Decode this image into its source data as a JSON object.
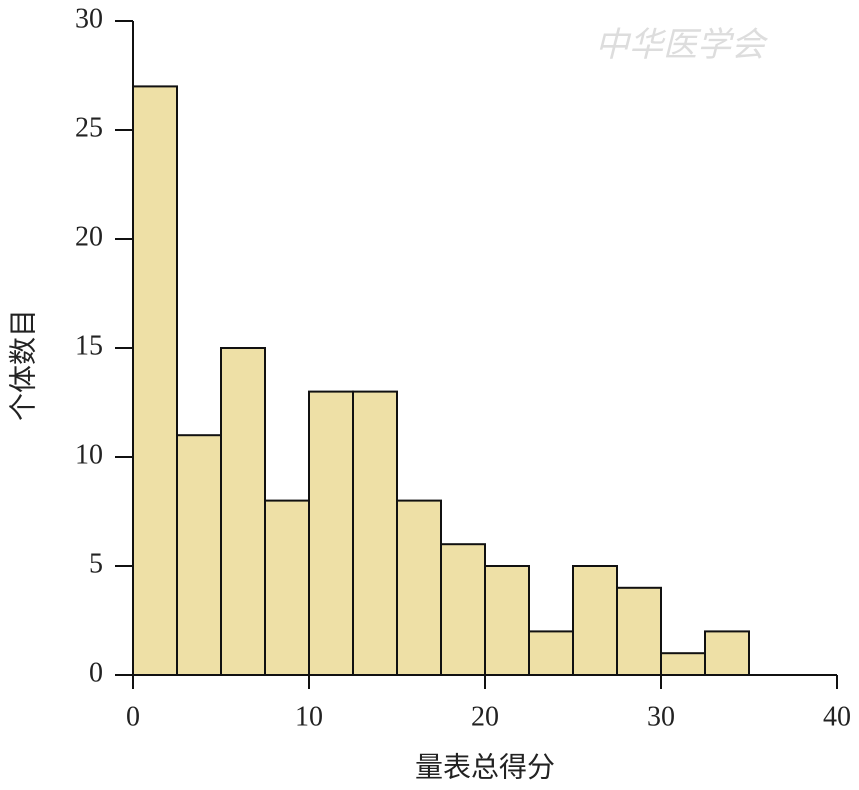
{
  "chart_data": {
    "type": "histogram",
    "xlabel": "量表总得分",
    "ylabel": "个体数目",
    "watermark": "中华医学会",
    "bins": [
      0,
      2.5,
      5,
      7.5,
      10,
      12.5,
      15,
      17.5,
      20,
      22.5,
      25,
      27.5,
      30,
      32.5,
      35
    ],
    "values": [
      27,
      11,
      15,
      8,
      13,
      13,
      8,
      6,
      5,
      2,
      5,
      4,
      1,
      2
    ],
    "color": "#eee0a6",
    "xlim": [
      0,
      40
    ],
    "xticks": [
      0,
      10,
      20,
      30,
      40
    ],
    "ylim": [
      0,
      30
    ],
    "yticks": [
      0,
      5,
      10,
      15,
      20,
      25,
      30
    ]
  }
}
